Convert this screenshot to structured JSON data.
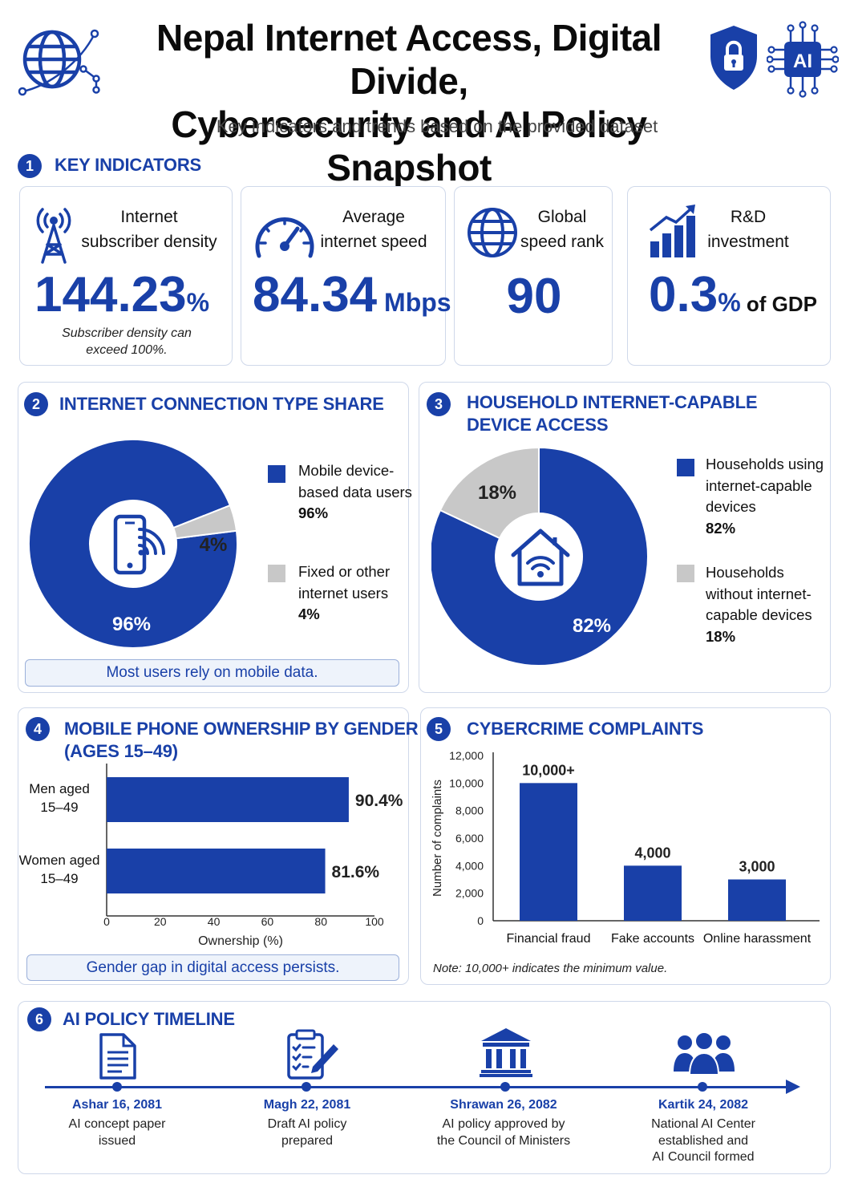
{
  "header": {
    "title_line1": "Nepal Internet Access, Digital Divide,",
    "title_line2": "Cybersecurity and AI Policy Snapshot",
    "subtitle": "Key indicators and trends based on the provided dataset",
    "icons": [
      "globe-network-icon",
      "shield-lock-icon",
      "ai-chip-icon"
    ]
  },
  "colors": {
    "primary": "#1940a8",
    "secondary": "#c8c8c8",
    "panel_border": "#cfd8ea"
  },
  "sections": {
    "s1": {
      "num": "1",
      "title": "KEY INDICATORS"
    },
    "s2": {
      "num": "2",
      "title": "INTERNET CONNECTION TYPE SHARE"
    },
    "s3": {
      "num": "3",
      "title_line1": "HOUSEHOLD INTERNET-CAPABLE",
      "title_line2": "DEVICE ACCESS"
    },
    "s4": {
      "num": "4",
      "title_line1": "MOBILE PHONE OWNERSHIP BY GENDER",
      "title_line2": "(AGES 15–49)"
    },
    "s5": {
      "num": "5",
      "title": "CYBERCRIME COMPLAINTS"
    },
    "s6": {
      "num": "6",
      "title": "AI POLICY TIMELINE"
    }
  },
  "kpis": [
    {
      "label_line1": "Internet",
      "label_line2": "subscriber density",
      "value": "144.23",
      "unit": "%",
      "suffix": "",
      "note_line1": "Subscriber density can",
      "note_line2": "exceed 100%.",
      "icon": "cell-tower-icon"
    },
    {
      "label_line1": "Average",
      "label_line2": "internet speed",
      "value": "84.34",
      "unit": " Mbps",
      "suffix": "",
      "icon": "speedometer-icon"
    },
    {
      "label_line1": "Global",
      "label_line2": "speed rank",
      "value": "90",
      "unit": "",
      "suffix": "",
      "icon": "globe-icon"
    },
    {
      "label_line1": "R&D",
      "label_line2": "investment",
      "value": "0.3",
      "unit": "%",
      "suffix": " of GDP",
      "icon": "growth-chart-icon"
    }
  ],
  "connection": {
    "legend": [
      {
        "line1": "Mobile device-",
        "line2": "based data users",
        "pct": "96%"
      },
      {
        "line1": "Fixed or other",
        "line2": "internet users",
        "pct": "4%"
      }
    ],
    "callout": "Most users rely on mobile data."
  },
  "household": {
    "legend": [
      {
        "line1": "Households using",
        "line2": "internet-capable",
        "line3": "devices",
        "pct": "82%"
      },
      {
        "line1": "Households",
        "line2": "without internet-",
        "line3": "capable devices",
        "pct": "18%"
      }
    ]
  },
  "gender": {
    "callout": "Gender gap in digital access persists."
  },
  "cyber": {
    "note": "Note: 10,000+ indicates the minimum value."
  },
  "timeline": [
    {
      "date": "Ashar 16, 2081",
      "desc_line1": "AI concept paper",
      "desc_line2": "issued",
      "desc_line3": "",
      "icon": "document-icon"
    },
    {
      "date": "Magh 22, 2081",
      "desc_line1": "Draft AI policy",
      "desc_line2": "prepared",
      "desc_line3": "",
      "icon": "clipboard-pencil-icon"
    },
    {
      "date": "Shrawan 26, 2082",
      "desc_line1": "AI policy approved by",
      "desc_line2": "the Council of Ministers",
      "desc_line3": "",
      "icon": "government-building-icon"
    },
    {
      "date": "Kartik 24, 2082",
      "desc_line1": "National AI Center",
      "desc_line2": "established and",
      "desc_line3": "AI Council formed",
      "icon": "people-group-icon"
    }
  ],
  "chart_data": [
    {
      "type": "pie",
      "variant": "donut",
      "categories": [
        "Mobile device-based data users",
        "Fixed or other internet users"
      ],
      "values": [
        96,
        4
      ],
      "labels": [
        "96%",
        "4%"
      ],
      "colors": [
        "#1940a8",
        "#c8c8c8"
      ],
      "center_icon": "smartphone-wifi-icon"
    },
    {
      "type": "pie",
      "variant": "donut",
      "categories": [
        "Households using internet-capable devices",
        "Households without internet-capable devices"
      ],
      "values": [
        82,
        18
      ],
      "labels": [
        "82%",
        "18%"
      ],
      "colors": [
        "#1940a8",
        "#c8c8c8"
      ],
      "center_icon": "home-wifi-icon"
    },
    {
      "type": "bar",
      "orientation": "horizontal",
      "categories": [
        "Men aged 15–49",
        "Women aged 15–49"
      ],
      "category_lines": [
        [
          "Men aged",
          "15–49"
        ],
        [
          "Women aged",
          "15–49"
        ]
      ],
      "values": [
        90.4,
        81.6
      ],
      "labels": [
        "90.4%",
        "81.6%"
      ],
      "xlabel": "Ownership (%)",
      "xlim": [
        0,
        100
      ],
      "xticks": [
        0,
        20,
        40,
        60,
        80,
        100
      ],
      "grid": false
    },
    {
      "type": "bar",
      "orientation": "vertical",
      "categories": [
        "Financial fraud",
        "Fake accounts",
        "Online harassment"
      ],
      "values": [
        10000,
        4000,
        3000
      ],
      "labels": [
        "10,000+",
        "4,000",
        "3,000"
      ],
      "ylabel": "Number of complaints",
      "ylim": [
        0,
        12000
      ],
      "yticks": [
        0,
        2000,
        4000,
        6000,
        8000,
        10000,
        12000
      ],
      "ytick_labels": [
        "0",
        "2,000",
        "4,000",
        "6,000",
        "8,000",
        "10,000",
        "12,000"
      ],
      "grid": false
    }
  ]
}
